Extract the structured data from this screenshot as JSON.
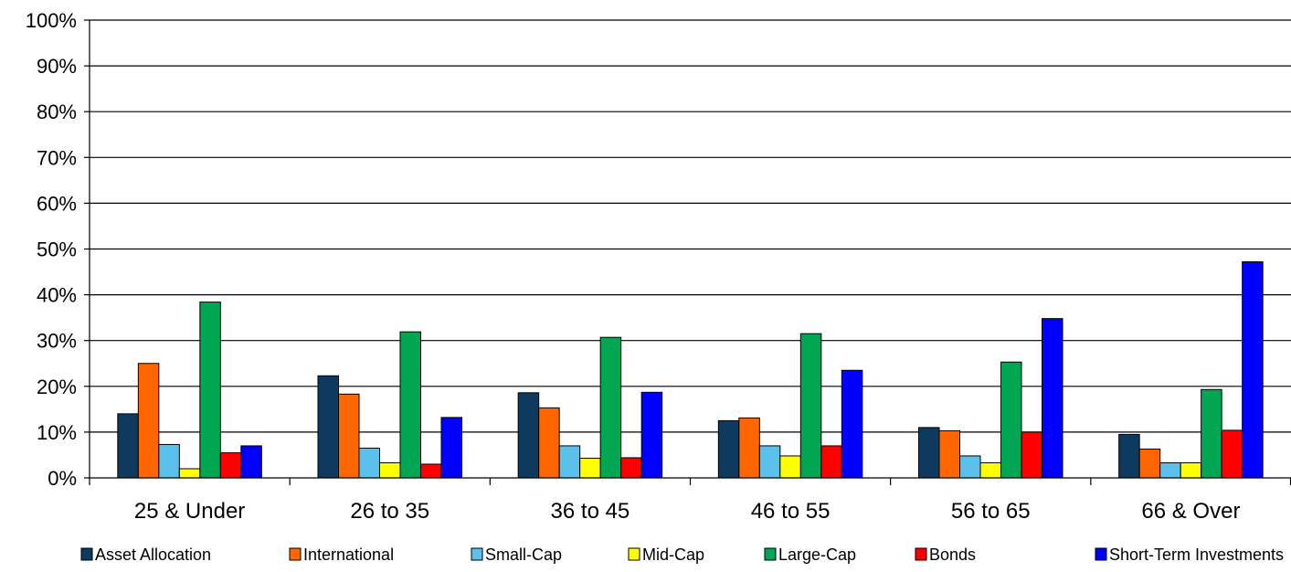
{
  "chart_data": {
    "type": "bar",
    "title": "",
    "xlabel": "",
    "ylabel": "",
    "ylim": [
      0,
      100
    ],
    "ytick_values": [
      0,
      10,
      20,
      30,
      40,
      50,
      60,
      70,
      80,
      90,
      100
    ],
    "ytick_labels": [
      "0%",
      "10%",
      "20%",
      "30%",
      "40%",
      "50%",
      "60%",
      "70%",
      "80%",
      "90%",
      "100%"
    ],
    "grid": true,
    "legend_position": "bottom",
    "categories": [
      "25 & Under",
      "26 to 35",
      "36 to 45",
      "46 to 55",
      "56 to 65",
      "66 & Over"
    ],
    "series": [
      {
        "name": "Asset Allocation",
        "color": "#0D3A5E",
        "values": [
          14,
          22.3,
          18.6,
          12.5,
          11,
          9.5
        ]
      },
      {
        "name": "International",
        "color": "#FF6600",
        "values": [
          25,
          18.3,
          15.3,
          13.1,
          10.3,
          6.3
        ]
      },
      {
        "name": "Small-Cap",
        "color": "#5BC0EB",
        "values": [
          7.3,
          6.5,
          7,
          7,
          4.8,
          3.3
        ]
      },
      {
        "name": "Mid-Cap",
        "color": "#FFFF00",
        "values": [
          2,
          3.3,
          4.3,
          4.8,
          3.3,
          3.3
        ]
      },
      {
        "name": "Large-Cap",
        "color": "#00A651",
        "values": [
          38.4,
          31.9,
          30.7,
          31.5,
          25.3,
          19.3
        ]
      },
      {
        "name": "Bonds",
        "color": "#FF0000",
        "values": [
          5.5,
          3,
          4.4,
          7,
          10,
          10.4
        ]
      },
      {
        "name": "Short-Term Investments",
        "color": "#0000FF",
        "values": [
          7,
          13.2,
          18.7,
          23.5,
          34.8,
          47.2
        ]
      }
    ]
  }
}
